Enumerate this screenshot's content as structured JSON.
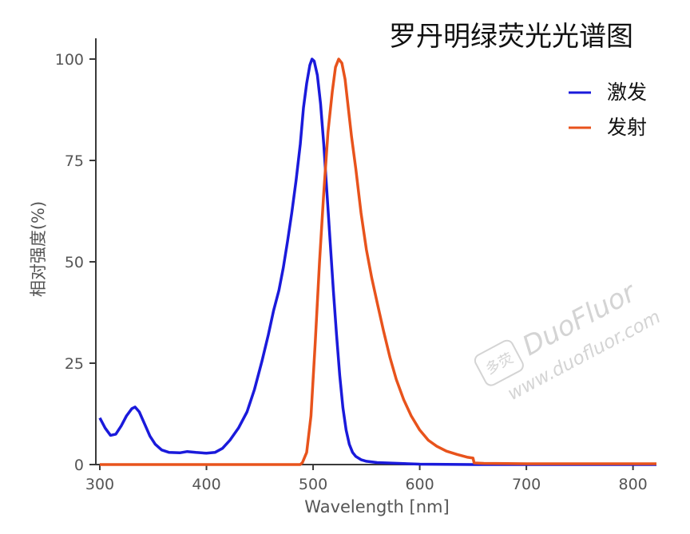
{
  "chart_data": {
    "type": "line",
    "title": "罗丹明绿荧光光谱图",
    "xlabel": "Wavelength [nm]",
    "ylabel": "相对强度(%)",
    "xlim": [
      300,
      822
    ],
    "ylim": [
      0,
      105
    ],
    "x_ticks": [
      300,
      400,
      500,
      600,
      700,
      800
    ],
    "y_ticks": [
      0,
      25,
      50,
      75,
      100
    ],
    "grid": false,
    "legend_position": "top-right",
    "series": [
      {
        "name": "激发",
        "color": "#1a1adb",
        "points": [
          [
            300,
            11.5
          ],
          [
            305,
            9
          ],
          [
            310,
            7.2
          ],
          [
            315,
            7.5
          ],
          [
            320,
            9.5
          ],
          [
            325,
            12
          ],
          [
            330,
            13.8
          ],
          [
            333,
            14.2
          ],
          [
            337,
            13
          ],
          [
            342,
            10
          ],
          [
            347,
            7
          ],
          [
            352,
            5
          ],
          [
            358,
            3.6
          ],
          [
            365,
            3
          ],
          [
            375,
            2.9
          ],
          [
            382,
            3.2
          ],
          [
            390,
            3
          ],
          [
            400,
            2.8
          ],
          [
            408,
            3
          ],
          [
            415,
            4
          ],
          [
            422,
            6
          ],
          [
            430,
            9
          ],
          [
            438,
            13
          ],
          [
            445,
            18.5
          ],
          [
            452,
            25.5
          ],
          [
            458,
            32
          ],
          [
            463,
            38
          ],
          [
            468,
            43
          ],
          [
            472,
            48.5
          ],
          [
            476,
            55
          ],
          [
            480,
            62
          ],
          [
            484,
            70
          ],
          [
            488,
            79
          ],
          [
            491,
            88
          ],
          [
            494,
            94
          ],
          [
            497,
            98.5
          ],
          [
            499,
            100
          ],
          [
            501,
            99.5
          ],
          [
            504,
            96
          ],
          [
            507,
            89
          ],
          [
            510,
            79
          ],
          [
            513,
            67
          ],
          [
            516,
            55
          ],
          [
            519,
            43
          ],
          [
            522,
            32
          ],
          [
            525,
            22
          ],
          [
            528,
            14
          ],
          [
            531,
            8.5
          ],
          [
            534,
            5
          ],
          [
            537,
            3
          ],
          [
            540,
            2
          ],
          [
            545,
            1.2
          ],
          [
            550,
            0.8
          ],
          [
            560,
            0.5
          ],
          [
            580,
            0.3
          ],
          [
            600,
            0.1
          ],
          [
            650,
            0
          ],
          [
            822,
            0
          ]
        ]
      },
      {
        "name": "发射",
        "color": "#e8531c",
        "points": [
          [
            300,
            0
          ],
          [
            488,
            0
          ],
          [
            490,
            0.5
          ],
          [
            494,
            3
          ],
          [
            498,
            12
          ],
          [
            502,
            30
          ],
          [
            506,
            50
          ],
          [
            510,
            67
          ],
          [
            514,
            82
          ],
          [
            518,
            92
          ],
          [
            521,
            98
          ],
          [
            524,
            100
          ],
          [
            527,
            99
          ],
          [
            530,
            95
          ],
          [
            533,
            88
          ],
          [
            536,
            81
          ],
          [
            540,
            73
          ],
          [
            545,
            62
          ],
          [
            550,
            53
          ],
          [
            555,
            46
          ],
          [
            560,
            40
          ],
          [
            566,
            33
          ],
          [
            572,
            26.5
          ],
          [
            578,
            21
          ],
          [
            585,
            16
          ],
          [
            592,
            12
          ],
          [
            600,
            8.5
          ],
          [
            608,
            6
          ],
          [
            616,
            4.5
          ],
          [
            625,
            3.3
          ],
          [
            635,
            2.5
          ],
          [
            645,
            1.8
          ],
          [
            650,
            1.6
          ],
          [
            651,
            0.4
          ],
          [
            660,
            0.3
          ],
          [
            700,
            0.2
          ],
          [
            822,
            0.2
          ]
        ]
      }
    ]
  },
  "watermark": {
    "logo_text": "多荧",
    "brand": "DuoFluor",
    "url": "www.duofluor.com"
  }
}
